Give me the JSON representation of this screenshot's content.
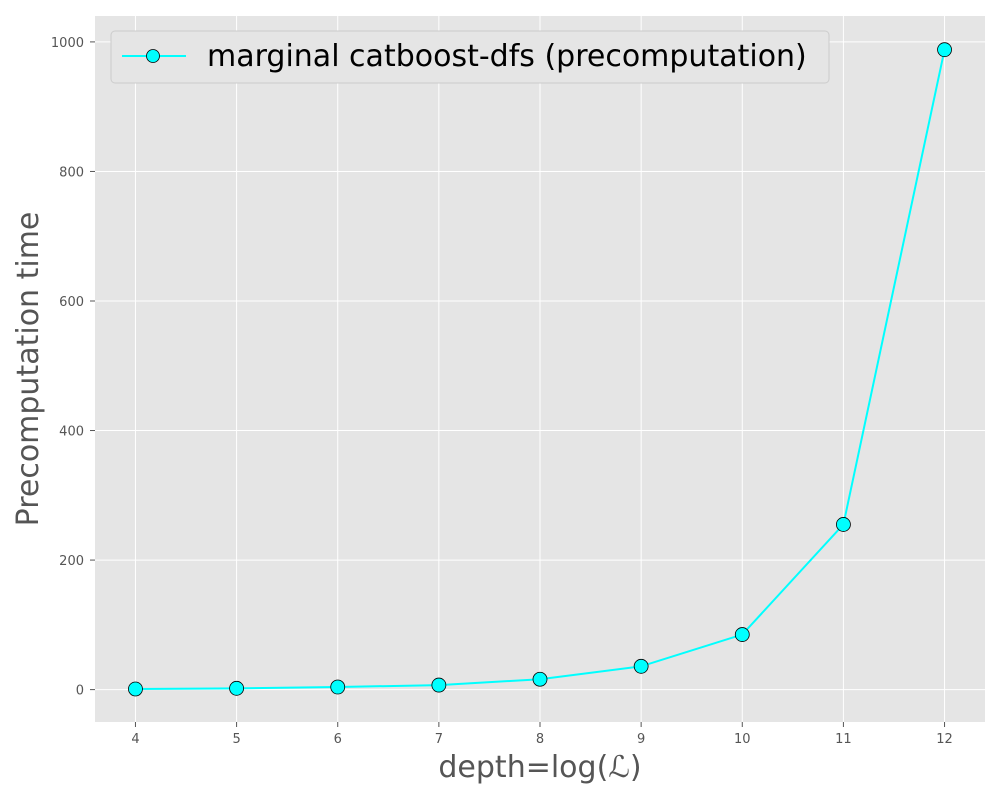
{
  "chart_data": {
    "type": "line",
    "title": "",
    "xlabel": "depth=log(ℒ)",
    "ylabel": "Precomputation time",
    "x": [
      4,
      5,
      6,
      7,
      8,
      9,
      10,
      11,
      12
    ],
    "xlim": [
      3.6,
      12.4
    ],
    "ylim": [
      -50,
      1040
    ],
    "xticks": [
      4,
      5,
      6,
      7,
      8,
      9,
      10,
      11,
      12
    ],
    "yticks": [
      0,
      200,
      400,
      600,
      800,
      1000
    ],
    "grid": true,
    "legend_position": "top-left",
    "series": [
      {
        "name": "marginal catboost-dfs (precomputation)",
        "color": "#00ffff",
        "marker": "circle",
        "values": [
          1,
          2,
          4,
          7,
          16,
          36,
          85,
          255,
          988
        ]
      }
    ]
  },
  "colors": {
    "plot_background": "#e5e5e5",
    "grid": "#ffffff",
    "tick_text": "#555555",
    "label_text": "#555555",
    "marker_edge": "#000000"
  }
}
